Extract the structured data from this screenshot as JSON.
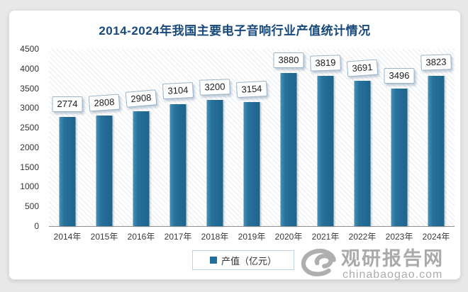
{
  "chart_data": {
    "type": "bar",
    "title": "2014-2024年我国主要电子音响行业产值统计情况",
    "categories": [
      "2014年",
      "2015年",
      "2016年",
      "2017年",
      "2018年",
      "2019年",
      "2020年",
      "2021年",
      "2022年",
      "2023年",
      "2024年"
    ],
    "values": [
      2774,
      2808,
      2908,
      3104,
      3200,
      3154,
      3880,
      3819,
      3691,
      3496,
      3823
    ],
    "series_name": "产值（亿元）",
    "xlabel": "",
    "ylabel": "",
    "ylim": [
      0,
      4500
    ],
    "ytick_step": 500,
    "grid": false,
    "legend_position": "bottom",
    "bar_color": "#256e98",
    "data_labels_shown": true
  },
  "watermark": {
    "brand": "观研报告网",
    "domain": "chinabaogao.com",
    "logo": "spiral-logo-icon"
  },
  "colors": {
    "bar": "#256e98",
    "title_text": "#17497a",
    "axis_text": "#333333",
    "watermark_gray": "#a6a6a6",
    "page_background": "#e8e8e8",
    "card_background": "#ffffff",
    "label_box_border": "#9cb4c8"
  }
}
